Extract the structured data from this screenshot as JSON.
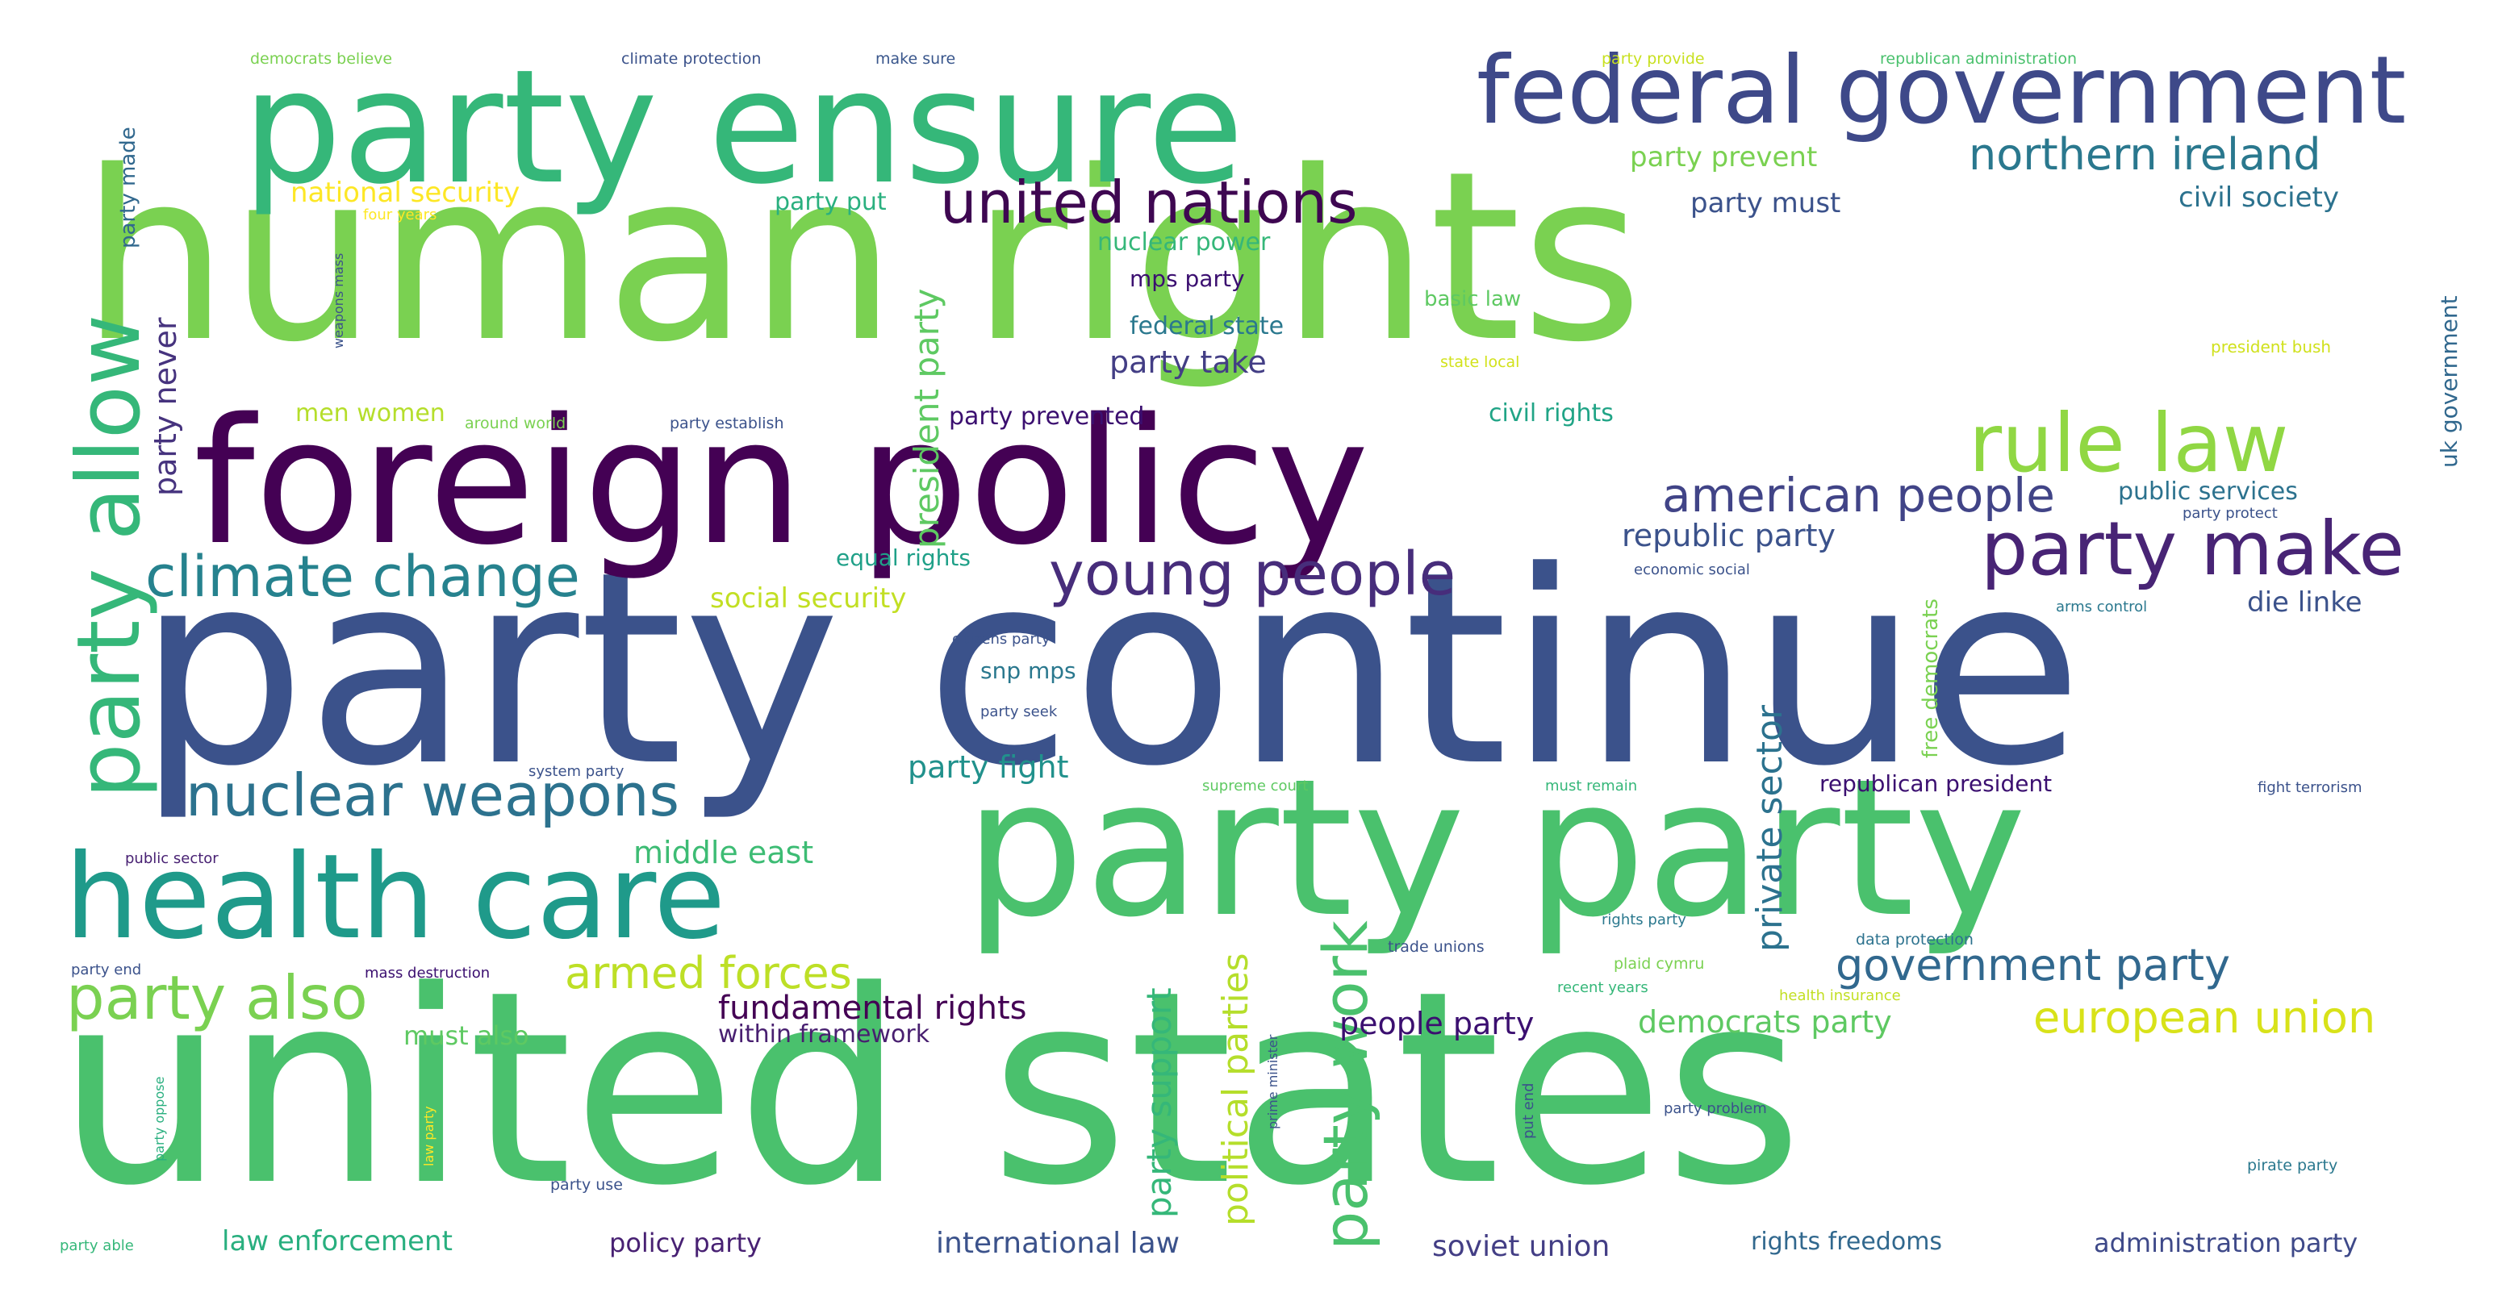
{
  "words": [
    {
      "text": "human rights",
      "color": "#7ad151"
    },
    {
      "text": "party continue",
      "color": "#3b528b"
    },
    {
      "text": "united states",
      "color": "#4ac16d"
    },
    {
      "text": "party party",
      "color": "#4ac16d"
    },
    {
      "text": "foreign policy",
      "color": "#440154"
    },
    {
      "text": "party ensure",
      "color": "#35b779"
    },
    {
      "text": "health care",
      "color": "#1f9a8a"
    },
    {
      "text": "federal government",
      "color": "#3e4989"
    },
    {
      "text": "party allow",
      "color": "#35b779"
    },
    {
      "text": "rule law",
      "color": "#90d743"
    },
    {
      "text": "party make",
      "color": "#482475"
    },
    {
      "text": "nuclear weapons",
      "color": "#2c728e"
    },
    {
      "text": "climate change",
      "color": "#26828e"
    },
    {
      "text": "young people",
      "color": "#472d7b"
    },
    {
      "text": "party also",
      "color": "#7ad151"
    },
    {
      "text": "united nations",
      "color": "#3e0751"
    },
    {
      "text": "party work",
      "color": "#4ac16d"
    },
    {
      "text": "american people",
      "color": "#414487"
    },
    {
      "text": "northern ireland",
      "color": "#2a788e"
    },
    {
      "text": "government party",
      "color": "#31688e"
    },
    {
      "text": "european union",
      "color": "#d8e219"
    },
    {
      "text": "armed forces",
      "color": "#bddf26"
    },
    {
      "text": "political parties",
      "color": "#b5de2b"
    },
    {
      "text": "private sector",
      "color": "#2c728e"
    },
    {
      "text": "party support",
      "color": "#35b779"
    },
    {
      "text": "president party",
      "color": "#5ec962"
    },
    {
      "text": "party never",
      "color": "#46337e"
    },
    {
      "text": "fundamental rights",
      "color": "#440154"
    },
    {
      "text": "people party",
      "color": "#3b0f70"
    },
    {
      "text": "democrats party",
      "color": "#5ec962"
    },
    {
      "text": "republic party",
      "color": "#3b528b"
    },
    {
      "text": "party take",
      "color": "#433e85"
    },
    {
      "text": "party prevent",
      "color": "#7ad151"
    },
    {
      "text": "party must",
      "color": "#3b528b"
    },
    {
      "text": "civil society",
      "color": "#2c728e"
    },
    {
      "text": "national security",
      "color": "#fde725"
    },
    {
      "text": "party fight",
      "color": "#21918c"
    },
    {
      "text": "middle east",
      "color": "#3dbc74"
    },
    {
      "text": "social security",
      "color": "#c2df23"
    },
    {
      "text": "die linke",
      "color": "#3b528b"
    },
    {
      "text": "law enforcement",
      "color": "#29af7f"
    },
    {
      "text": "international law",
      "color": "#3b528b"
    },
    {
      "text": "soviet union",
      "color": "#433e85"
    },
    {
      "text": "administration party",
      "color": "#3e4989"
    },
    {
      "text": "policy party",
      "color": "#482173"
    },
    {
      "text": "rights freedoms",
      "color": "#31688e"
    },
    {
      "text": "party put",
      "color": "#2ab07f"
    },
    {
      "text": "nuclear power",
      "color": "#35b779"
    },
    {
      "text": "federal state",
      "color": "#2a788e"
    },
    {
      "text": "mps party",
      "color": "#3b0f70"
    },
    {
      "text": "party prevented",
      "color": "#3b0f70"
    },
    {
      "text": "civil rights",
      "color": "#20a486"
    },
    {
      "text": "men women",
      "color": "#b5de2b"
    },
    {
      "text": "must also",
      "color": "#5ec962"
    },
    {
      "text": "within framework",
      "color": "#481f70"
    },
    {
      "text": "equal rights",
      "color": "#1fa088"
    },
    {
      "text": "snp mps",
      "color": "#2a788e"
    },
    {
      "text": "public services",
      "color": "#2c728e"
    },
    {
      "text": "republican president",
      "color": "#3b0f70"
    },
    {
      "text": "uk government",
      "color": "#31688e"
    },
    {
      "text": "free democrats",
      "color": "#7ad151"
    },
    {
      "text": "party made",
      "color": "#31688e"
    },
    {
      "text": "basic law",
      "color": "#5ec962"
    },
    {
      "text": "democrats believe",
      "color": "#7ad151"
    },
    {
      "text": "climate protection",
      "color": "#3b528b"
    },
    {
      "text": "make sure",
      "color": "#39568c"
    },
    {
      "text": "party provide",
      "color": "#c8e020"
    },
    {
      "text": "republican administration",
      "color": "#4ac16d"
    },
    {
      "text": "four years",
      "color": "#fde725"
    },
    {
      "text": "weapons mass",
      "color": "#3b528b"
    },
    {
      "text": "president bush",
      "color": "#d0e11c"
    },
    {
      "text": "state local",
      "color": "#d2e21b"
    },
    {
      "text": "around world",
      "color": "#7ad151"
    },
    {
      "text": "party establish",
      "color": "#3b528b"
    },
    {
      "text": "party protect",
      "color": "#3b528b"
    },
    {
      "text": "economic social",
      "color": "#3b528b"
    },
    {
      "text": "arms control",
      "color": "#2a788e"
    },
    {
      "text": "citizens party",
      "color": "#3b528b"
    },
    {
      "text": "party seek",
      "color": "#3b528b"
    },
    {
      "text": "system party",
      "color": "#3b528b"
    },
    {
      "text": "supreme court",
      "color": "#5ec962"
    },
    {
      "text": "must remain",
      "color": "#35b779"
    },
    {
      "text": "fight terrorism",
      "color": "#3b528b"
    },
    {
      "text": "public sector",
      "color": "#482173"
    },
    {
      "text": "trade unions",
      "color": "#3b528b"
    },
    {
      "text": "rights party",
      "color": "#2a788e"
    },
    {
      "text": "data protection",
      "color": "#2c728e"
    },
    {
      "text": "party end",
      "color": "#3b528b"
    },
    {
      "text": "mass destruction",
      "color": "#3b0f70"
    },
    {
      "text": "plaid cymru",
      "color": "#7ad151"
    },
    {
      "text": "recent years",
      "color": "#35b779"
    },
    {
      "text": "health insurance",
      "color": "#c2df23"
    },
    {
      "text": "party oppose",
      "color": "#29af7f"
    },
    {
      "text": "law party",
      "color": "#fde725"
    },
    {
      "text": "prime minister",
      "color": "#3b528b"
    },
    {
      "text": "put end",
      "color": "#3b528b"
    },
    {
      "text": "party problem",
      "color": "#3b528b"
    },
    {
      "text": "pirate party",
      "color": "#2a788e"
    },
    {
      "text": "party use",
      "color": "#3b528b"
    },
    {
      "text": "party able",
      "color": "#35b779"
    }
  ]
}
